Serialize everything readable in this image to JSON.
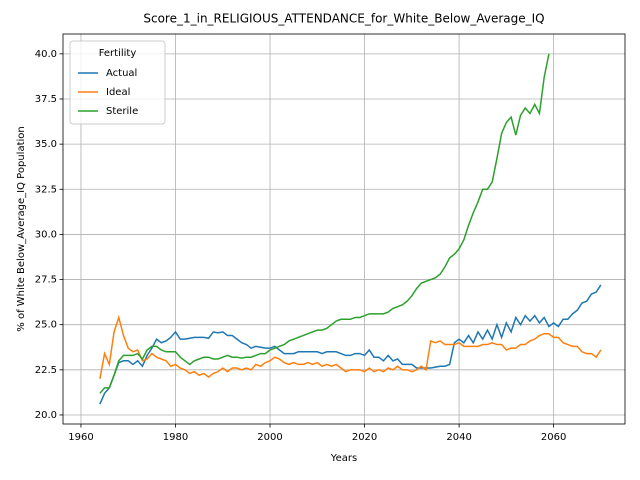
{
  "chart_data": {
    "type": "line",
    "title": "Score_1_in_RELIGIOUS_ATTENDANCE_for_White_Below_Average_IQ",
    "xlabel": "Years",
    "ylabel": "% of White Below_Average_IQ Population",
    "legend_title": "Fertility",
    "legend_loc": "upper left",
    "grid": true,
    "xlim": [
      1956.2,
      2075.1
    ],
    "xticks": [
      1960,
      1980,
      2000,
      2020,
      2040,
      2060
    ],
    "ylim": [
      19.5,
      41.1
    ],
    "yticks": [
      {
        "value": 20,
        "label": "20.0"
      },
      22.5,
      {
        "value": 25,
        "label": "25.0"
      },
      27.5,
      {
        "value": 30,
        "label": "30.0"
      },
      32.5,
      {
        "value": 35,
        "label": "35.0"
      },
      37.5,
      {
        "value": 40,
        "label": "40.0"
      }
    ],
    "x": [
      1964,
      1965,
      1966,
      1967,
      1968,
      1969,
      1970,
      1971,
      1972,
      1973,
      1974,
      1975,
      1976,
      1977,
      1978,
      1979,
      1980,
      1981,
      1982,
      1983,
      1984,
      1985,
      1986,
      1987,
      1988,
      1989,
      1990,
      1991,
      1992,
      1993,
      1994,
      1995,
      1996,
      1997,
      1998,
      1999,
      2000,
      2001,
      2002,
      2003,
      2004,
      2005,
      2006,
      2007,
      2008,
      2009,
      2010,
      2011,
      2012,
      2013,
      2014,
      2015,
      2016,
      2017,
      2018,
      2019,
      2020,
      2021,
      2022,
      2023,
      2024,
      2025,
      2026,
      2027,
      2028,
      2029,
      2030,
      2031,
      2032,
      2033,
      2034,
      2035,
      2036,
      2037,
      2038,
      2039,
      2040,
      2041,
      2042,
      2043,
      2044,
      2045,
      2046,
      2047,
      2048,
      2049,
      2050,
      2051,
      2052,
      2053,
      2054,
      2055,
      2056,
      2057,
      2058,
      2059,
      2060,
      2061,
      2062,
      2063,
      2064,
      2065,
      2066,
      2067,
      2068,
      2069,
      2070
    ],
    "series": [
      {
        "name": "Actual",
        "color": "#1f77b4",
        "values": [
          20.6,
          21.2,
          21.5,
          22.2,
          22.9,
          23.0,
          23.0,
          22.8,
          23.0,
          22.7,
          23.3,
          23.7,
          24.2,
          24.0,
          24.1,
          24.3,
          24.6,
          24.2,
          24.2,
          24.25,
          24.3,
          24.3,
          24.3,
          24.25,
          24.6,
          24.55,
          24.6,
          24.4,
          24.4,
          24.2,
          24.0,
          23.9,
          23.7,
          23.8,
          23.75,
          23.7,
          23.7,
          23.8,
          23.6,
          23.4,
          23.4,
          23.4,
          23.5,
          23.5,
          23.5,
          23.5,
          23.5,
          23.4,
          23.5,
          23.5,
          23.5,
          23.4,
          23.3,
          23.3,
          23.4,
          23.4,
          23.3,
          23.6,
          23.2,
          23.2,
          23.0,
          23.3,
          23.0,
          23.1,
          22.8,
          22.8,
          22.8,
          22.6,
          22.6,
          22.6,
          22.6,
          22.65,
          22.7,
          22.7,
          22.8,
          24.0,
          24.2,
          24.0,
          24.4,
          24.0,
          24.6,
          24.2,
          24.7,
          24.2,
          25.0,
          24.3,
          25.1,
          24.6,
          25.4,
          25.0,
          25.5,
          25.2,
          25.5,
          25.1,
          25.4,
          24.9,
          25.1,
          24.9,
          25.3,
          25.3,
          25.6,
          25.8,
          26.2,
          26.3,
          26.7,
          26.8,
          27.2
        ]
      },
      {
        "name": "Ideal",
        "color": "#ff7f0e",
        "values": [
          22.0,
          23.4,
          22.8,
          24.6,
          25.4,
          24.4,
          23.7,
          23.5,
          23.6,
          23.0,
          23.1,
          23.4,
          23.2,
          23.1,
          23.0,
          22.7,
          22.8,
          22.6,
          22.5,
          22.3,
          22.4,
          22.2,
          22.3,
          22.1,
          22.3,
          22.4,
          22.6,
          22.4,
          22.6,
          22.6,
          22.5,
          22.6,
          22.5,
          22.8,
          22.7,
          22.9,
          23.0,
          23.2,
          23.1,
          22.9,
          22.8,
          22.9,
          22.8,
          22.8,
          22.9,
          22.8,
          22.9,
          22.7,
          22.8,
          22.7,
          22.8,
          22.6,
          22.4,
          22.5,
          22.5,
          22.5,
          22.4,
          22.6,
          22.4,
          22.5,
          22.4,
          22.6,
          22.5,
          22.7,
          22.5,
          22.5,
          22.4,
          22.5,
          22.7,
          22.5,
          24.1,
          24.0,
          24.1,
          23.9,
          23.9,
          23.9,
          24.0,
          23.8,
          23.8,
          23.8,
          23.8,
          23.9,
          23.9,
          24.0,
          23.9,
          23.9,
          23.6,
          23.7,
          23.7,
          23.9,
          23.9,
          24.1,
          24.2,
          24.4,
          24.5,
          24.5,
          24.3,
          24.3,
          24.0,
          23.9,
          23.8,
          23.8,
          23.5,
          23.4,
          23.4,
          23.2,
          23.6
        ]
      },
      {
        "name": "Sterile",
        "color": "#2ca02c",
        "values": [
          21.2,
          21.5,
          21.5,
          22.2,
          23.0,
          23.3,
          23.3,
          23.3,
          23.4,
          23.1,
          23.6,
          23.8,
          23.8,
          23.6,
          23.5,
          23.5,
          23.5,
          23.2,
          23.0,
          22.8,
          23.0,
          23.1,
          23.2,
          23.2,
          23.1,
          23.1,
          23.2,
          23.3,
          23.2,
          23.2,
          23.15,
          23.2,
          23.2,
          23.3,
          23.4,
          23.4,
          23.6,
          23.7,
          23.8,
          23.9,
          24.1,
          24.2,
          24.3,
          24.4,
          24.5,
          24.6,
          24.7,
          24.7,
          24.8,
          25.0,
          25.2,
          25.3,
          25.3,
          25.3,
          25.4,
          25.4,
          25.5,
          25.6,
          25.6,
          25.6,
          25.6,
          25.7,
          25.9,
          26.0,
          26.1,
          26.3,
          26.6,
          27.0,
          27.3,
          27.4,
          27.5,
          27.6,
          27.8,
          28.2,
          28.7,
          28.9,
          29.2,
          29.7,
          30.5,
          31.2,
          31.8,
          32.5,
          32.5,
          32.9,
          34.2,
          35.6,
          36.2,
          36.5,
          35.5,
          36.6,
          37.0,
          36.7,
          37.2,
          36.7,
          38.7,
          40.0,
          null,
          null,
          null,
          null,
          null,
          null,
          null,
          null,
          null,
          null,
          null
        ]
      }
    ]
  }
}
